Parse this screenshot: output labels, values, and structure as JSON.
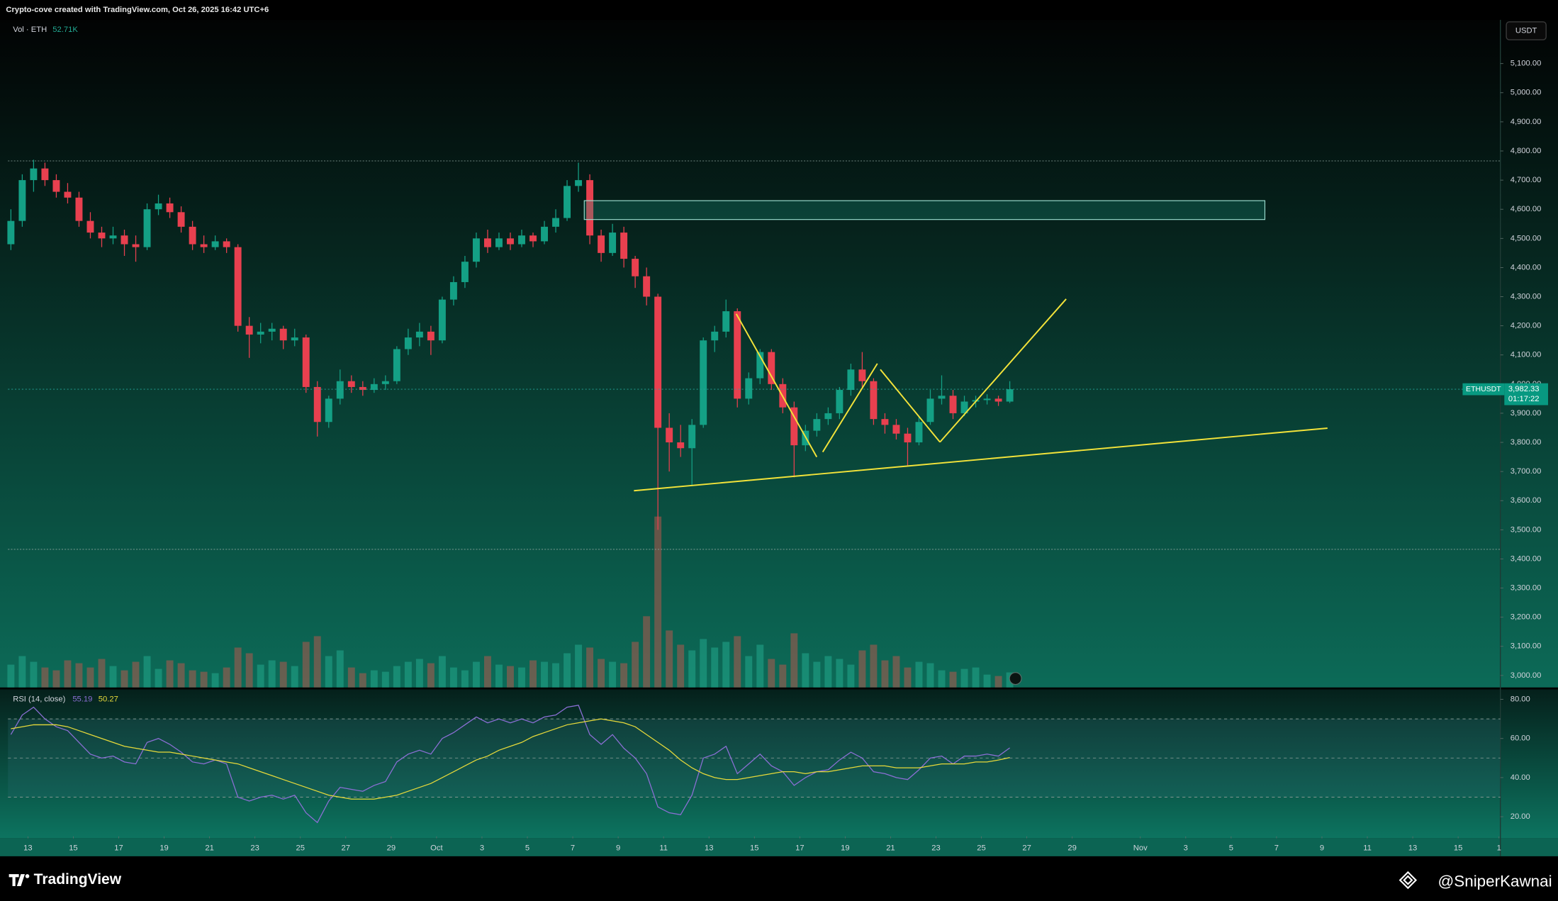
{
  "chart_data": {
    "type": "candlestick",
    "header": "Crypto-cove created with TradingView.com, Oct 26, 2025 16:42 UTC+6",
    "symbol": "ETHUSDT",
    "currency": "USDT",
    "last_price_label": "3,982.33",
    "countdown": "01:17:22",
    "up_color": "#14a085",
    "down_color": "#e8404f",
    "x": [
      12.25,
      12.75,
      13.25,
      13.75,
      14.25,
      14.75,
      15.25,
      15.75,
      16.25,
      16.75,
      17.25,
      17.75,
      18.25,
      18.75,
      19.25,
      19.75,
      20.25,
      20.75,
      21.25,
      21.75,
      22.25,
      22.75,
      23.25,
      23.75,
      24.25,
      24.75,
      25.25,
      25.75,
      26.25,
      26.75,
      27.25,
      27.75,
      28.25,
      28.75,
      29.25,
      29.75,
      30.25,
      30.75,
      31.25,
      31.75,
      32.25,
      32.75,
      33.25,
      33.75,
      34.25,
      34.75,
      35.25,
      35.75,
      36.25,
      36.75,
      37.25,
      37.75,
      38.25,
      38.75,
      39.25,
      39.75,
      40.25,
      40.75,
      41.25,
      41.75,
      42.25,
      42.75,
      43.25,
      43.75,
      44.25,
      44.75,
      45.25,
      45.75,
      46.25,
      46.75,
      47.25,
      47.75,
      48.25,
      48.75,
      49.25,
      49.75,
      50.25,
      50.75,
      51.25,
      51.75,
      52.25,
      52.75,
      53.25,
      53.75,
      54.25,
      54.75,
      55.25,
      55.75,
      56.25
    ],
    "candles": [
      [
        4480,
        4600,
        4460,
        4560
      ],
      [
        4560,
        4720,
        4540,
        4700
      ],
      [
        4700,
        4770,
        4660,
        4740
      ],
      [
        4740,
        4760,
        4680,
        4700
      ],
      [
        4700,
        4720,
        4640,
        4660
      ],
      [
        4660,
        4690,
        4620,
        4640
      ],
      [
        4640,
        4660,
        4540,
        4560
      ],
      [
        4560,
        4590,
        4500,
        4520
      ],
      [
        4520,
        4540,
        4470,
        4500
      ],
      [
        4500,
        4540,
        4480,
        4510
      ],
      [
        4510,
        4530,
        4440,
        4480
      ],
      [
        4480,
        4510,
        4420,
        4470
      ],
      [
        4470,
        4620,
        4460,
        4600
      ],
      [
        4600,
        4650,
        4580,
        4620
      ],
      [
        4620,
        4640,
        4570,
        4590
      ],
      [
        4590,
        4610,
        4520,
        4540
      ],
      [
        4540,
        4560,
        4460,
        4480
      ],
      [
        4480,
        4510,
        4450,
        4470
      ],
      [
        4470,
        4510,
        4460,
        4490
      ],
      [
        4490,
        4500,
        4450,
        4470
      ],
      [
        4470,
        4480,
        4180,
        4200
      ],
      [
        4200,
        4230,
        4090,
        4170
      ],
      [
        4170,
        4210,
        4140,
        4180
      ],
      [
        4180,
        4210,
        4150,
        4190
      ],
      [
        4190,
        4200,
        4120,
        4150
      ],
      [
        4150,
        4190,
        4130,
        4160
      ],
      [
        4160,
        4170,
        3970,
        3990
      ],
      [
        3990,
        4010,
        3820,
        3870
      ],
      [
        3870,
        3960,
        3850,
        3950
      ],
      [
        3950,
        4050,
        3930,
        4010
      ],
      [
        4010,
        4030,
        3970,
        3990
      ],
      [
        3990,
        4010,
        3960,
        3980
      ],
      [
        3980,
        4020,
        3970,
        4000
      ],
      [
        4000,
        4030,
        3980,
        4010
      ],
      [
        4010,
        4130,
        4000,
        4120
      ],
      [
        4120,
        4190,
        4100,
        4160
      ],
      [
        4160,
        4210,
        4130,
        4180
      ],
      [
        4180,
        4200,
        4100,
        4150
      ],
      [
        4150,
        4300,
        4140,
        4290
      ],
      [
        4290,
        4370,
        4270,
        4350
      ],
      [
        4350,
        4440,
        4330,
        4420
      ],
      [
        4420,
        4520,
        4400,
        4500
      ],
      [
        4500,
        4530,
        4450,
        4470
      ],
      [
        4470,
        4520,
        4460,
        4500
      ],
      [
        4500,
        4520,
        4460,
        4480
      ],
      [
        4480,
        4530,
        4470,
        4510
      ],
      [
        4510,
        4520,
        4470,
        4490
      ],
      [
        4490,
        4560,
        4480,
        4540
      ],
      [
        4540,
        4600,
        4520,
        4570
      ],
      [
        4570,
        4700,
        4560,
        4680
      ],
      [
        4680,
        4760,
        4660,
        4700
      ],
      [
        4700,
        4720,
        4480,
        4510
      ],
      [
        4510,
        4530,
        4420,
        4450
      ],
      [
        4450,
        4550,
        4440,
        4520
      ],
      [
        4520,
        4540,
        4400,
        4430
      ],
      [
        4430,
        4440,
        4330,
        4370
      ],
      [
        4370,
        4400,
        4270,
        4300
      ],
      [
        4300,
        4310,
        3500,
        3850
      ],
      [
        3850,
        3900,
        3700,
        3800
      ],
      [
        3800,
        3860,
        3750,
        3780
      ],
      [
        3780,
        3880,
        3650,
        3860
      ],
      [
        3860,
        4160,
        3850,
        4150
      ],
      [
        4150,
        4200,
        4110,
        4180
      ],
      [
        4180,
        4290,
        4160,
        4250
      ],
      [
        4250,
        4260,
        3920,
        3950
      ],
      [
        3950,
        4040,
        3930,
        4020
      ],
      [
        4020,
        4120,
        4000,
        4110
      ],
      [
        4110,
        4120,
        3980,
        4000
      ],
      [
        4000,
        4020,
        3900,
        3920
      ],
      [
        3920,
        3940,
        3680,
        3790
      ],
      [
        3790,
        3860,
        3770,
        3840
      ],
      [
        3840,
        3900,
        3820,
        3880
      ],
      [
        3880,
        3920,
        3860,
        3900
      ],
      [
        3900,
        3990,
        3880,
        3980
      ],
      [
        3980,
        4070,
        3960,
        4050
      ],
      [
        4050,
        4110,
        3990,
        4010
      ],
      [
        4010,
        4020,
        3860,
        3880
      ],
      [
        3880,
        3900,
        3830,
        3860
      ],
      [
        3860,
        3880,
        3810,
        3830
      ],
      [
        3830,
        3850,
        3720,
        3800
      ],
      [
        3800,
        3890,
        3790,
        3870
      ],
      [
        3870,
        3980,
        3860,
        3950
      ],
      [
        3950,
        4030,
        3930,
        3960
      ],
      [
        3960,
        3980,
        3880,
        3900
      ],
      [
        3900,
        3960,
        3890,
        3940
      ],
      [
        3940,
        3960,
        3920,
        3945
      ],
      [
        3945,
        3965,
        3930,
        3950
      ],
      [
        3950,
        3960,
        3925,
        3940
      ],
      [
        3940,
        4010,
        3935,
        3982.33
      ]
    ],
    "ylim": [
      2959,
      5250
    ],
    "yticks": [
      {
        "value": 3000,
        "label": "3,000.00"
      },
      {
        "value": 3100,
        "label": "3,100.00"
      },
      {
        "value": 3200,
        "label": "3,200.00"
      },
      {
        "value": 3300,
        "label": "3,300.00"
      },
      {
        "value": 3400,
        "label": "3,400.00"
      },
      {
        "value": 3500,
        "label": "3,500.00"
      },
      {
        "value": 3600,
        "label": "3,600.00"
      },
      {
        "value": 3700,
        "label": "3,700.00"
      },
      {
        "value": 3800,
        "label": "3,800.00"
      },
      {
        "value": 3900,
        "label": "3,900.00"
      },
      {
        "value": 4000,
        "label": "4,000.00"
      },
      {
        "value": 4100,
        "label": "4,100.00"
      },
      {
        "value": 4200,
        "label": "4,200.00"
      },
      {
        "value": 4300,
        "label": "4,300.00"
      },
      {
        "value": 4400,
        "label": "4,400.00"
      },
      {
        "value": 4500,
        "label": "4,500.00"
      },
      {
        "value": 4600,
        "label": "4,600.00"
      },
      {
        "value": 4700,
        "label": "4,700.00"
      },
      {
        "value": 4800,
        "label": "4,800.00"
      },
      {
        "value": 4900,
        "label": "4,900.00"
      },
      {
        "value": 5000,
        "label": "5,000.00"
      },
      {
        "value": 5100,
        "label": "5,100.00"
      }
    ],
    "xlim": [
      12.12,
      77.86
    ],
    "xticks": [
      13,
      15,
      17,
      19,
      21,
      23,
      25,
      27,
      29,
      {
        "value": 31,
        "label": "Oct"
      },
      {
        "value": 33,
        "label": "3"
      },
      {
        "value": 35,
        "label": "5"
      },
      {
        "value": 37,
        "label": "7"
      },
      {
        "value": 39,
        "label": "9"
      },
      {
        "value": 41,
        "label": "11"
      },
      {
        "value": 43,
        "label": "13"
      },
      {
        "value": 45,
        "label": "15"
      },
      {
        "value": 47,
        "label": "17"
      },
      {
        "value": 49,
        "label": "19"
      },
      {
        "value": 51,
        "label": "21"
      },
      {
        "value": 53,
        "label": "23"
      },
      {
        "value": 55,
        "label": "25"
      },
      {
        "value": 57,
        "label": "27"
      },
      {
        "value": 59,
        "label": "29"
      },
      {
        "value": 62,
        "label": "Nov"
      },
      {
        "value": 64,
        "label": "3"
      },
      {
        "value": 66,
        "label": "5"
      },
      {
        "value": 68,
        "label": "7"
      },
      {
        "value": 70,
        "label": "9"
      },
      {
        "value": 72,
        "label": "11"
      },
      {
        "value": 74,
        "label": "13"
      },
      {
        "value": 76,
        "label": "15"
      },
      {
        "value": 77.8,
        "label": "1"
      }
    ],
    "volume": {
      "label": "Vol · ETH",
      "last_label": "52.71K",
      "values": [
        80,
        110,
        90,
        70,
        60,
        95,
        85,
        70,
        100,
        75,
        60,
        90,
        110,
        65,
        95,
        85,
        60,
        55,
        50,
        70,
        140,
        120,
        80,
        95,
        90,
        75,
        160,
        180,
        110,
        130,
        70,
        50,
        60,
        55,
        75,
        90,
        100,
        85,
        110,
        70,
        60,
        90,
        110,
        80,
        75,
        70,
        95,
        90,
        85,
        120,
        150,
        140,
        100,
        90,
        85,
        160,
        250,
        600,
        200,
        150,
        130,
        170,
        140,
        160,
        180,
        110,
        150,
        100,
        80,
        190,
        120,
        90,
        110,
        100,
        80,
        130,
        150,
        95,
        110,
        70,
        90,
        85,
        60,
        55,
        65,
        70,
        45,
        40,
        52.71
      ]
    },
    "rsi": {
      "label": "RSI (14, close)",
      "ylim": [
        9.9,
        85.1
      ],
      "yticks": [
        {
          "value": 20,
          "label": "20.00"
        },
        {
          "value": 40,
          "label": "40.00"
        },
        {
          "value": 60,
          "label": "60.00"
        },
        {
          "value": 80,
          "label": "80.00"
        }
      ],
      "bands": [
        70,
        50,
        30
      ],
      "lines": [
        {
          "color": "#8c6fd6",
          "last_label": "55.19",
          "values": [
            62,
            72,
            76,
            70,
            66,
            64,
            58,
            52,
            50,
            51,
            48,
            47,
            58,
            60,
            57,
            53,
            48,
            47,
            49,
            47,
            30,
            28,
            30,
            31,
            29,
            31,
            22,
            17,
            28,
            35,
            34,
            33,
            36,
            38,
            48,
            52,
            54,
            52,
            60,
            63,
            67,
            71,
            68,
            70,
            68,
            70,
            68,
            71,
            72,
            76,
            77,
            62,
            57,
            62,
            55,
            50,
            42,
            25,
            22,
            21,
            31,
            50,
            52,
            56,
            42,
            47,
            52,
            46,
            43,
            36,
            40,
            43,
            44,
            49,
            53,
            50,
            43,
            42,
            40,
            39,
            44,
            50,
            51,
            47,
            51,
            51,
            52,
            51,
            55.19
          ]
        },
        {
          "color": "#e6d93a",
          "last_label": "50.27",
          "values": [
            65,
            66,
            67,
            67,
            67,
            66,
            64,
            62,
            60,
            58,
            56,
            55,
            54,
            53,
            53,
            52,
            51,
            50,
            49,
            48,
            47,
            45,
            43,
            41,
            39,
            37,
            35,
            33,
            31,
            30,
            29,
            29,
            29,
            30,
            31,
            33,
            35,
            37,
            40,
            43,
            46,
            49,
            51,
            54,
            56,
            58,
            61,
            63,
            65,
            67,
            68,
            69,
            70,
            69,
            68,
            66,
            62,
            58,
            54,
            49,
            45,
            42,
            40,
            39,
            39,
            40,
            41,
            42,
            43,
            43,
            42,
            43,
            43,
            44,
            45,
            46,
            46,
            46,
            45,
            45,
            45,
            46,
            47,
            47,
            47,
            48,
            48,
            49,
            50.27
          ]
        }
      ]
    },
    "footer": {
      "brand": "TradingView",
      "author": "@SniperKawnai"
    }
  }
}
